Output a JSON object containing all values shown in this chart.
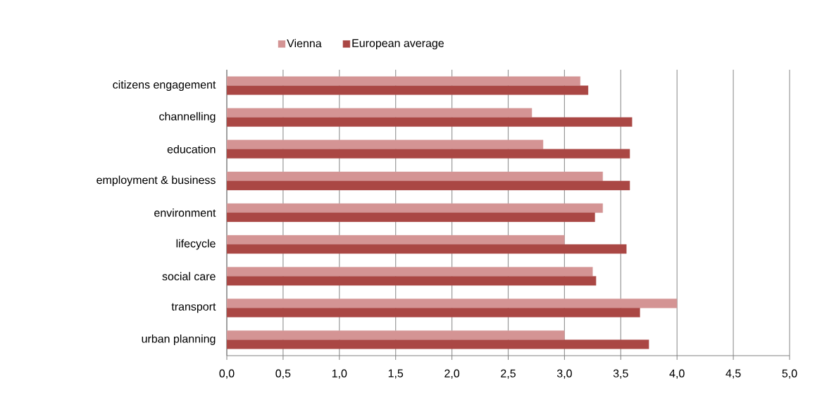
{
  "chart_data": {
    "type": "bar",
    "orientation": "horizontal",
    "categories": [
      "citizens engagement",
      "channelling",
      "education",
      "employment & business",
      "environment",
      "lifecycle",
      "social care",
      "transport",
      "urban planning"
    ],
    "series": [
      {
        "name": "Vienna",
        "color": "#d49494",
        "values": [
          3.14,
          2.71,
          2.81,
          3.34,
          3.34,
          3.0,
          3.25,
          4.0,
          3.0
        ]
      },
      {
        "name": "European average",
        "color": "#aa4744",
        "values": [
          3.21,
          3.6,
          3.58,
          3.58,
          3.27,
          3.55,
          3.28,
          3.67,
          3.75
        ]
      }
    ],
    "xlim": [
      0,
      5
    ],
    "xticks": [
      {
        "value": 0,
        "label": "0,0"
      },
      {
        "value": 0.5,
        "label": "0,5"
      },
      {
        "value": 1,
        "label": "1,0"
      },
      {
        "value": 1.5,
        "label": "1,5"
      },
      {
        "value": 2,
        "label": "2,0"
      },
      {
        "value": 2.5,
        "label": "2,5"
      },
      {
        "value": 3,
        "label": "3,0"
      },
      {
        "value": 3.5,
        "label": "3,5"
      },
      {
        "value": 4,
        "label": "4,0"
      },
      {
        "value": 4.5,
        "label": "4,5"
      },
      {
        "value": 5,
        "label": "5,0"
      }
    ],
    "grid": "x",
    "legend": "top"
  }
}
